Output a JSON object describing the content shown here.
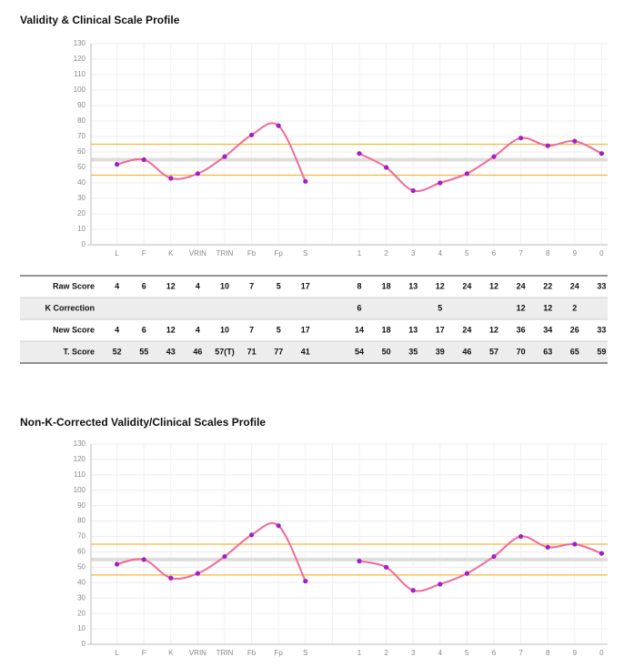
{
  "chart_data": [
    {
      "type": "line",
      "title": "Validity & Clinical Scale Profile",
      "categories": [
        "L",
        "F",
        "K",
        "VRIN",
        "TRIN",
        "Fb",
        "Fp",
        "S",
        null,
        "1",
        "2",
        "3",
        "4",
        "5",
        "6",
        "7",
        "8",
        "9",
        "0"
      ],
      "series": [
        {
          "name": "T. Score",
          "color": "#f06a9a",
          "marker_color": "#a21fc4",
          "values": [
            52,
            55,
            43,
            46,
            57,
            71,
            77,
            41,
            null,
            59,
            50,
            35,
            40,
            46,
            57,
            69,
            64,
            67,
            59
          ]
        }
      ],
      "ylim": [
        0,
        130
      ],
      "yticks": [
        0,
        10,
        20,
        30,
        40,
        50,
        60,
        70,
        80,
        90,
        100,
        110,
        120,
        130
      ],
      "grid": true,
      "reference_lines": [
        {
          "value": 65,
          "color": "#f5b53d"
        },
        {
          "value": 45,
          "color": "#f5b53d"
        },
        {
          "value": 55,
          "color": "#dddddd"
        }
      ]
    },
    {
      "type": "line",
      "title": "Non-K-Corrected Validity/Clinical Scales Profile",
      "categories": [
        "L",
        "F",
        "K",
        "VRIN",
        "TRIN",
        "Fb",
        "Fp",
        "S",
        null,
        "1",
        "2",
        "3",
        "4",
        "5",
        "6",
        "7",
        "8",
        "9",
        "0"
      ],
      "series": [
        {
          "name": "T. Score",
          "color": "#f06a9a",
          "marker_color": "#a21fc4",
          "values": [
            52,
            55,
            43,
            46,
            57,
            71,
            77,
            41,
            null,
            54,
            50,
            35,
            39,
            46,
            57,
            70,
            63,
            65,
            59
          ]
        }
      ],
      "ylim": [
        0,
        130
      ],
      "yticks": [
        0,
        10,
        20,
        30,
        40,
        50,
        60,
        70,
        80,
        90,
        100,
        110,
        120,
        130
      ],
      "grid": true,
      "reference_lines": [
        {
          "value": 65,
          "color": "#f5b53d"
        },
        {
          "value": 45,
          "color": "#f5b53d"
        },
        {
          "value": 55,
          "color": "#dddddd"
        }
      ]
    }
  ],
  "table": {
    "rows": [
      {
        "label": "Raw Score",
        "cells": [
          4,
          6,
          12,
          4,
          10,
          7,
          5,
          17,
          null,
          8,
          18,
          13,
          12,
          24,
          12,
          24,
          22,
          24,
          33
        ]
      },
      {
        "label": "K Correction",
        "cells": [
          null,
          null,
          null,
          null,
          null,
          null,
          null,
          null,
          null,
          6,
          null,
          null,
          5,
          null,
          null,
          12,
          12,
          2,
          null
        ]
      },
      {
        "label": "New Score",
        "cells": [
          4,
          6,
          12,
          4,
          10,
          7,
          5,
          17,
          null,
          14,
          18,
          13,
          17,
          24,
          12,
          36,
          34,
          26,
          33
        ]
      },
      {
        "label": "T. Score",
        "cells": [
          52,
          55,
          43,
          46,
          "57(T)",
          71,
          77,
          41,
          null,
          54,
          50,
          35,
          39,
          46,
          57,
          70,
          63,
          65,
          59
        ]
      }
    ]
  }
}
